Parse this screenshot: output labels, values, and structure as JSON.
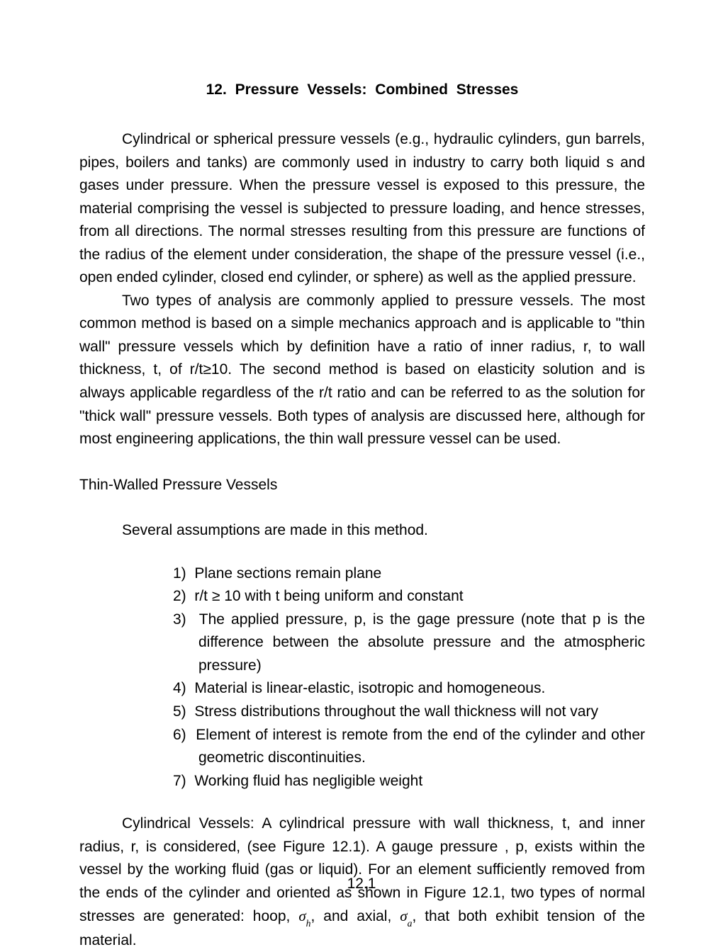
{
  "title": "12.  Pressure  Vessels:  Combined  Stresses",
  "paragraphs": {
    "p1": "Cylindrical or spherical pressure vessels (e.g., hydraulic  cylinders, gun barrels, pipes, boilers and tanks) are commonly used in industry to carry both liquid s and gases under pressure.  When the pressure vessel is exposed to this pressure, the material comprising the vessel is subjected to pressure loading, and hence stresses, from all directions.   The normal stresses resulting from  this pressure are functions of the radius of the element under consideration, the shape of the pressure vessel (i.e., open ended cylinder, closed end cylinder, or sphere) as well as the applied pressure.",
    "p2": "Two types of analysis are commonly  applied to pressure vessels.   The most common method is based on a simple mechanics approach and is applicable to \"thin wall\" pressure vessels which by definition have a ratio of inner radius, r,  to wall thickness, t, of r/t≥10.  The second method is based on elasticity solution and is always applicable regardless of the r/t ratio and can be referred to as the solution for \"thick wall\" pressure vessels.   Both types of analysis are discussed here, although for most engineering applications, the thin wall pressure  vessel can be used.",
    "section_heading": "Thin-Walled Pressure Vessels",
    "lead_in": "Several assumptions are made in this method.",
    "p3_prefix": "Cylindrical Vessels:  A cylindrical pressure with wall  thickness, t, and inner radius, r, is considered, (see Figure 12.1).  A gauge pressure , p, exists within the vessel by the working fluid (gas or liquid).  For an element sufficiently removed from the ends of the cylinder and oriented  as shown in Figure 12.1, two types of normal stresses are generated: hoop, ",
    "p3_mid": ", and axial, ",
    "p3_suffix": ", that both exhibit tension of the material."
  },
  "assumptions": [
    "Plane sections remain plane",
    "r/t ≥ 10 with t being uniform and constant",
    "The applied pressure, p, is the gage pressure (note that p is the difference between the absolute pressure and the atmospheric pressure)",
    "Material is linear-elastic, isotropic  and homogeneous.",
    "Stress distributions throughout the wall thickness will not vary",
    "Element of interest is remote from the end of the cylinder and  other geometric  discontinuities.",
    "Working fluid has negligible weight"
  ],
  "symbols": {
    "sigma": "σ",
    "sub_h": "h",
    "sub_a": "a"
  },
  "page_number": "12.1",
  "list_numbers": [
    "1)",
    "2)",
    "3)",
    "4)",
    "5)",
    "6)",
    "7)"
  ]
}
